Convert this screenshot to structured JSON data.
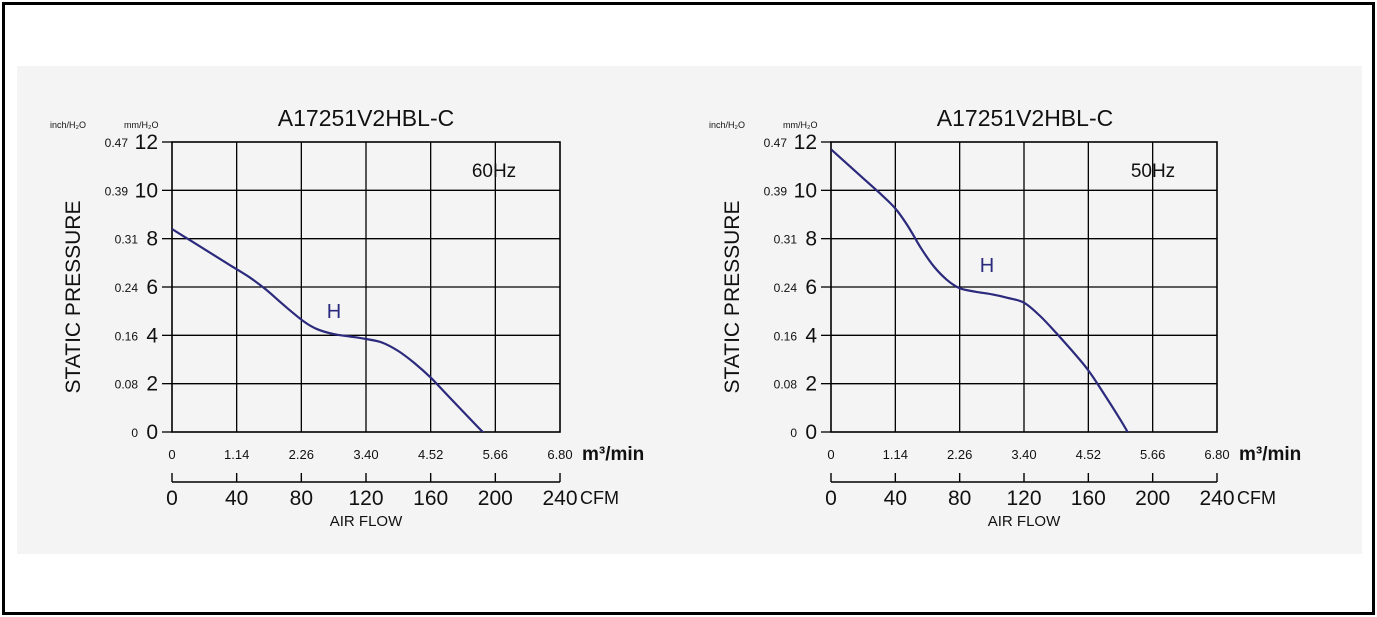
{
  "chart_data": [
    {
      "type": "line",
      "title": "A17251V2HBL-C",
      "annotation": "60Hz",
      "series_label": "H",
      "ylabel": "STATIC PRESSURE",
      "y_unit_left": "inch/H₂O",
      "y_unit_right": "mm/H₂O",
      "y_ticks_mm": [
        "12",
        "10",
        "8",
        "6",
        "4",
        "2",
        "0"
      ],
      "y_ticks_inch": [
        "0.47",
        "0.39",
        "0.31",
        "0.24",
        "0.16",
        "0.08",
        "0"
      ],
      "x_ticks_m3": [
        "0",
        "1.14",
        "2.26",
        "3.40",
        "4.52",
        "5.66",
        "6.80"
      ],
      "x_unit_m3": "m³/min",
      "x_ticks_cfm": [
        "0",
        "40",
        "80",
        "120",
        "160",
        "200",
        "240"
      ],
      "x_unit_cfm": "CFM",
      "xlabel": "AIR FLOW",
      "xlim": [
        0,
        240
      ],
      "ylim": [
        0,
        12
      ],
      "grid": true,
      "line_color": "#2b2a7c",
      "series": [
        {
          "name": "H",
          "x": [
            0,
            12,
            24,
            36,
            48,
            58,
            70,
            82,
            90,
            100,
            110,
            120,
            130,
            140,
            150,
            160,
            170,
            180,
            190,
            197
          ],
          "y": [
            8.4,
            7.9,
            7.4,
            6.9,
            6.4,
            5.9,
            5.2,
            4.55,
            4.25,
            4.05,
            3.95,
            3.85,
            3.7,
            3.35,
            2.85,
            2.25,
            1.55,
            0.85,
            0.15,
            -0.3
          ]
        }
      ]
    },
    {
      "type": "line",
      "title": "A17251V2HBL-C",
      "annotation": "50Hz",
      "series_label": "H",
      "ylabel": "STATIC PRESSURE",
      "y_unit_left": "inch/H₂O",
      "y_unit_right": "mm/H₂O",
      "y_ticks_mm": [
        "12",
        "10",
        "8",
        "6",
        "4",
        "2",
        "0"
      ],
      "y_ticks_inch": [
        "0.47",
        "0.39",
        "0.31",
        "0.24",
        "0.16",
        "0.08",
        "0"
      ],
      "x_ticks_m3": [
        "0",
        "1.14",
        "2.26",
        "3.40",
        "4.52",
        "5.66",
        "6.80"
      ],
      "x_unit_m3": "m³/min",
      "x_ticks_cfm": [
        "0",
        "40",
        "80",
        "120",
        "160",
        "200",
        "240"
      ],
      "x_unit_cfm": "CFM",
      "xlabel": "AIR FLOW",
      "xlim": [
        0,
        240
      ],
      "ylim": [
        0,
        12
      ],
      "grid": true,
      "line_color": "#2b2a7c",
      "series": [
        {
          "name": "H",
          "x": [
            0,
            10,
            20,
            30,
            40,
            48,
            56,
            64,
            72,
            80,
            90,
            100,
            110,
            120,
            130,
            140,
            150,
            160,
            170,
            180,
            187
          ],
          "y": [
            11.7,
            11.1,
            10.5,
            9.9,
            9.25,
            8.5,
            7.6,
            6.85,
            6.3,
            5.95,
            5.8,
            5.7,
            5.55,
            5.35,
            4.8,
            4.1,
            3.35,
            2.55,
            1.55,
            0.5,
            -0.3
          ]
        }
      ]
    }
  ]
}
